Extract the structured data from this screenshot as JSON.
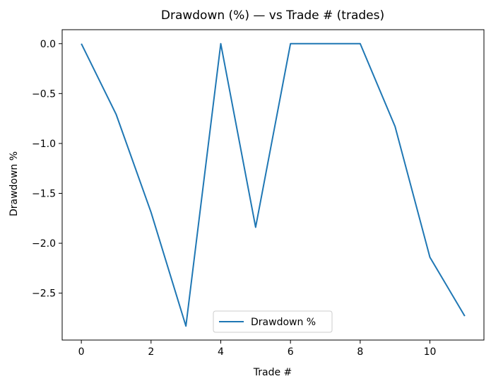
{
  "chart_data": {
    "type": "line",
    "title": "Drawdown (%) — vs Trade # (trades)",
    "xlabel": "Trade #",
    "ylabel": "Drawdown %",
    "xlim": [
      -0.55,
      11.55
    ],
    "ylim": [
      -2.97,
      0.14
    ],
    "xticks": [
      0,
      2,
      4,
      6,
      8,
      10
    ],
    "yticks": [
      0.0,
      -0.5,
      -1.0,
      -1.5,
      -2.0,
      -2.5
    ],
    "ytick_labels": [
      "0.0",
      "−0.5",
      "−1.0",
      "−1.5",
      "−2.0",
      "−2.5"
    ],
    "grid": false,
    "legend_position": "bottom-center",
    "series": [
      {
        "name": "Drawdown %",
        "color": "#1f77b4",
        "x": [
          0,
          1,
          2,
          3,
          4,
          5,
          6,
          7,
          8,
          9,
          10,
          11
        ],
        "y": [
          0.0,
          -0.71,
          -1.69,
          -2.83,
          0.0,
          -1.84,
          0.0,
          0.0,
          0.0,
          -0.83,
          -2.14,
          -2.73
        ]
      }
    ]
  }
}
